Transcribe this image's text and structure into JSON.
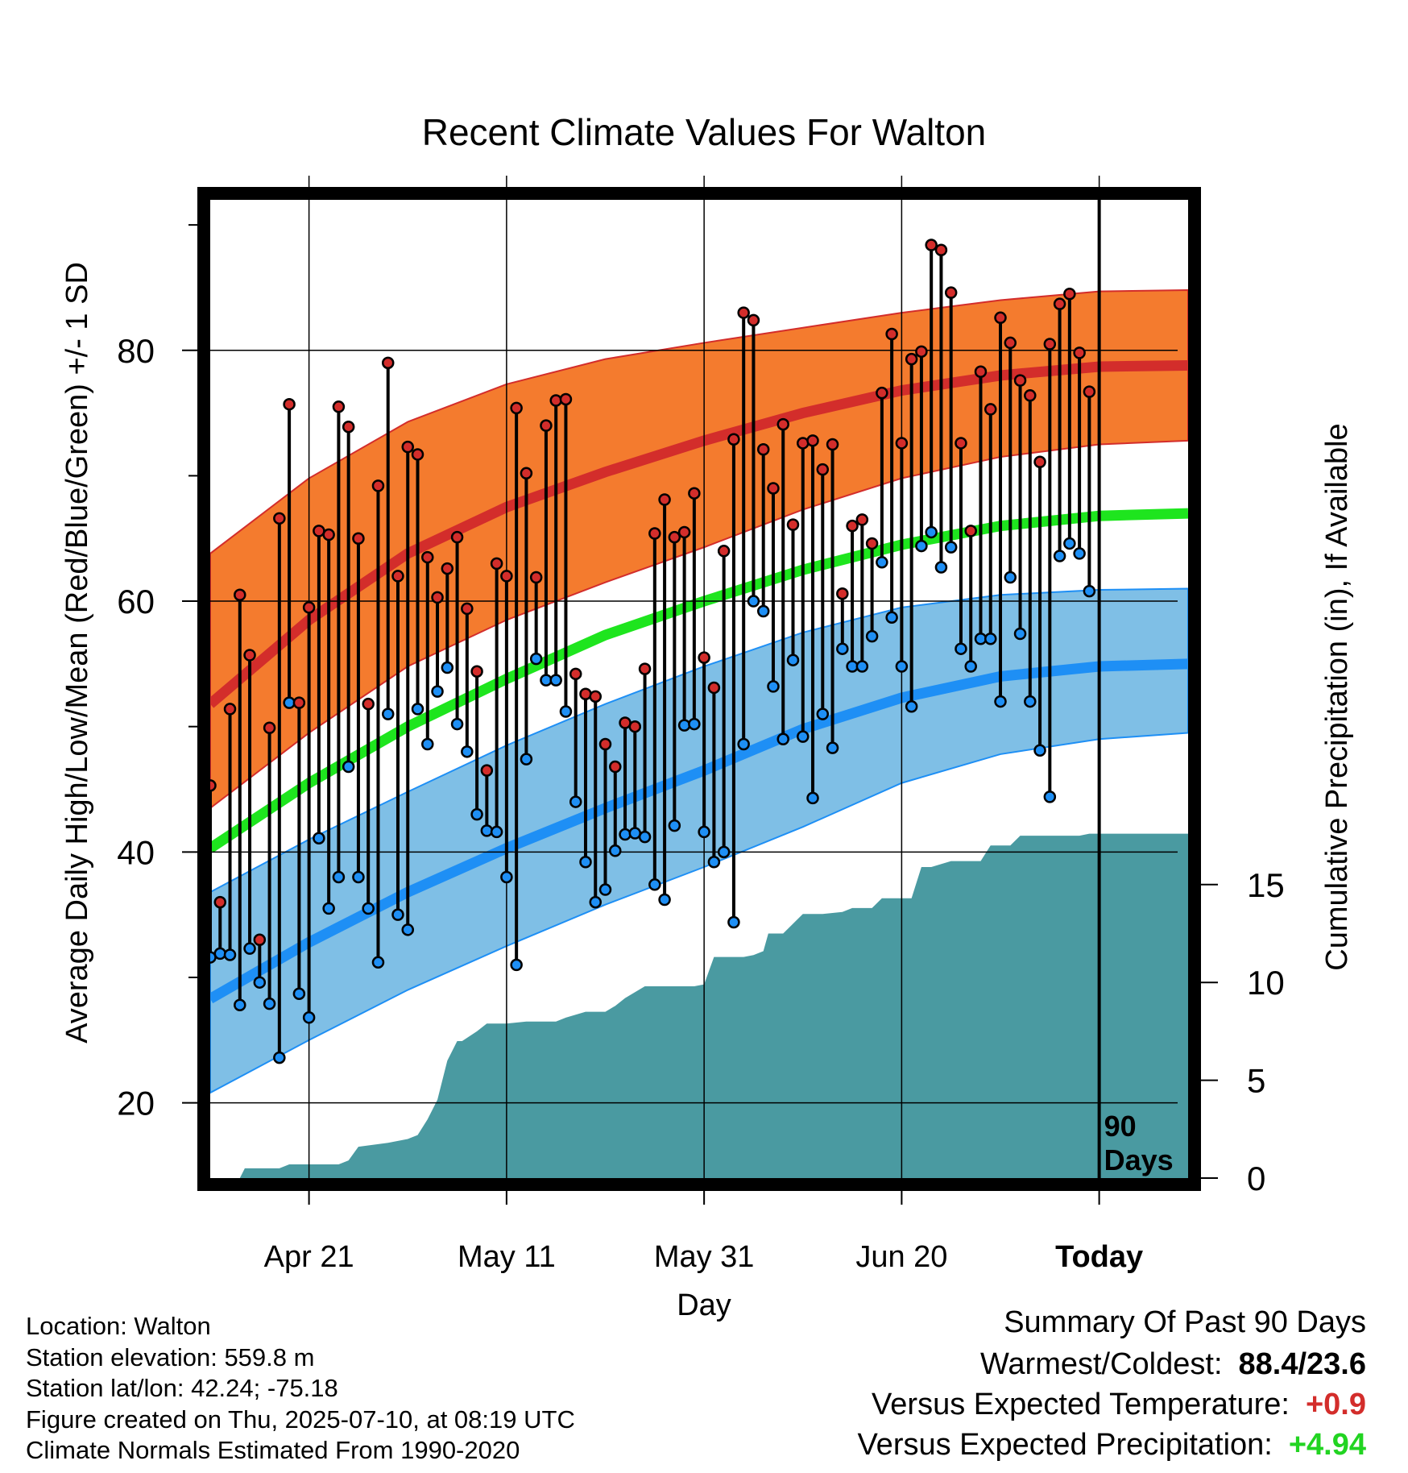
{
  "chart_data": {
    "type": "line",
    "title": "Recent Climate Values For Walton",
    "xlabel": "Day",
    "ylabel_left": "Average Daily High/Low/Mean (Red/Blue/Green) +/- 1 SD",
    "ylabel_right": "Cumulative Precipitation (in), If Available",
    "x_ticks": [
      {
        "label": "Apr 21",
        "day": 10
      },
      {
        "label": "May 11",
        "day": 30
      },
      {
        "label": "May 31",
        "day": 50
      },
      {
        "label": "Jun 20",
        "day": 70
      },
      {
        "label": "Today",
        "day": 90
      }
    ],
    "xlim": [
      0,
      99
    ],
    "y_left_ticks": [
      20,
      40,
      60,
      80
    ],
    "y_left_lim": [
      14,
      92
    ],
    "y_right_ticks": [
      0,
      5,
      10,
      15
    ],
    "y_right_lim": [
      0,
      50
    ],
    "grid": true,
    "today_marker_label": [
      "90",
      "Days"
    ],
    "normals": {
      "days": [
        0,
        10,
        20,
        30,
        40,
        50,
        60,
        70,
        80,
        90,
        99
      ],
      "high_mean": [
        51.8,
        58.5,
        63.8,
        67.5,
        70.3,
        72.8,
        75.0,
        76.8,
        78.0,
        78.7,
        78.8
      ],
      "high_upper": [
        63.8,
        69.8,
        74.3,
        77.3,
        79.3,
        80.6,
        81.8,
        83.0,
        84.0,
        84.7,
        84.8
      ],
      "high_lower": [
        43.5,
        49.5,
        54.8,
        58.5,
        61.5,
        64.3,
        67.3,
        69.8,
        71.5,
        72.5,
        72.8
      ],
      "mean": [
        40.3,
        45.5,
        50.0,
        53.8,
        57.3,
        60.0,
        62.5,
        64.5,
        66.0,
        66.8,
        67.0
      ],
      "low_mean": [
        28.3,
        32.8,
        36.8,
        40.3,
        43.5,
        46.5,
        49.8,
        52.3,
        54.0,
        54.8,
        55.0
      ],
      "low_upper": [
        36.8,
        41.0,
        44.8,
        48.5,
        51.8,
        54.8,
        57.5,
        59.5,
        60.5,
        60.9,
        61.0
      ],
      "low_lower": [
        20.8,
        25.0,
        29.0,
        32.5,
        35.8,
        38.8,
        42.0,
        45.5,
        47.8,
        49.0,
        49.5
      ]
    },
    "daily": {
      "days": [
        0,
        1,
        2,
        3,
        4,
        5,
        6,
        7,
        8,
        9,
        10,
        11,
        12,
        13,
        14,
        15,
        16,
        17,
        18,
        19,
        20,
        21,
        22,
        23,
        24,
        25,
        26,
        27,
        28,
        29,
        30,
        31,
        32,
        33,
        34,
        35,
        36,
        37,
        38,
        39,
        40,
        41,
        42,
        43,
        44,
        45,
        46,
        47,
        48,
        49,
        50,
        51,
        52,
        53,
        54,
        55,
        56,
        57,
        58,
        59,
        60,
        61,
        62,
        63,
        64,
        65,
        66,
        67,
        68,
        69,
        70,
        71,
        72,
        73,
        74,
        75,
        76,
        77,
        78,
        79,
        80,
        81,
        82,
        83,
        84,
        85,
        86,
        87,
        88,
        89
      ],
      "high": [
        45.3,
        36.0,
        51.4,
        60.5,
        55.7,
        33.0,
        49.9,
        66.6,
        75.7,
        51.9,
        59.5,
        65.6,
        65.3,
        75.5,
        73.9,
        65.0,
        51.8,
        69.2,
        79.0,
        62.0,
        72.3,
        71.7,
        63.5,
        60.3,
        62.6,
        65.1,
        59.4,
        54.4,
        46.5,
        63.0,
        62.0,
        75.4,
        70.2,
        61.9,
        74.0,
        76.0,
        76.1,
        54.2,
        52.6,
        52.4,
        48.6,
        46.8,
        50.3,
        50.0,
        54.6,
        65.4,
        68.1,
        65.1,
        65.5,
        68.6,
        55.5,
        53.1,
        64.0,
        72.9,
        83.0,
        82.4,
        72.1,
        69.0,
        74.1,
        66.1,
        72.6,
        72.8,
        70.5,
        72.5,
        60.6,
        66.0,
        66.5,
        64.6,
        76.6,
        81.3,
        72.6,
        79.3,
        79.9,
        88.4,
        88.0,
        84.6,
        72.6,
        65.6,
        78.3,
        75.3,
        82.6,
        80.6,
        77.6,
        76.4,
        71.1,
        80.5,
        83.7,
        84.5,
        79.8,
        76.7
      ],
      "low": [
        31.6,
        31.9,
        31.8,
        27.8,
        32.3,
        29.6,
        27.9,
        23.6,
        51.9,
        28.7,
        26.8,
        41.1,
        35.5,
        38.0,
        46.8,
        38.0,
        35.5,
        31.2,
        51.0,
        35.0,
        33.8,
        51.4,
        48.6,
        52.8,
        54.7,
        50.2,
        48.0,
        43.0,
        41.7,
        41.6,
        38.0,
        31.0,
        47.4,
        55.4,
        53.7,
        53.7,
        51.2,
        44.0,
        39.2,
        36.0,
        37.0,
        40.1,
        41.4,
        41.5,
        41.2,
        37.4,
        36.2,
        42.1,
        50.1,
        50.2,
        41.6,
        39.2,
        40.0,
        34.4,
        48.6,
        60.0,
        59.2,
        53.2,
        49.0,
        55.3,
        49.2,
        44.3,
        51.0,
        48.3,
        56.2,
        54.8,
        54.8,
        57.2,
        63.1,
        58.7,
        54.8,
        51.6,
        64.4,
        65.5,
        62.7,
        64.3,
        56.2,
        54.8,
        57.0,
        57.0,
        52.0,
        61.9,
        57.4,
        52.0,
        48.1,
        44.4,
        63.6,
        64.6,
        63.8,
        60.8
      ]
    },
    "precip_cumulative": {
      "days": [
        0,
        3,
        3.5,
        7,
        8,
        13,
        14,
        15,
        18,
        20,
        21,
        22,
        23,
        24,
        25,
        25.5,
        27,
        28,
        28.5,
        30,
        32,
        35,
        36,
        38,
        40,
        41,
        42,
        44,
        45,
        48,
        49,
        50,
        51,
        54,
        55,
        56,
        56.5,
        58,
        59,
        60,
        62,
        64,
        65,
        67,
        68,
        70,
        71,
        72,
        73,
        75,
        76,
        78,
        79,
        81,
        82,
        88,
        89,
        90,
        99
      ],
      "values": [
        0,
        0,
        0.5,
        0.5,
        0.7,
        0.7,
        0.9,
        1.6,
        1.8,
        2.0,
        2.2,
        3.0,
        4.0,
        6.0,
        7.0,
        7.0,
        7.5,
        7.9,
        7.9,
        7.9,
        8.0,
        8.0,
        8.2,
        8.5,
        8.5,
        8.8,
        9.2,
        9.8,
        9.8,
        9.8,
        9.8,
        9.9,
        11.3,
        11.3,
        11.4,
        11.6,
        12.5,
        12.5,
        13.0,
        13.5,
        13.5,
        13.6,
        13.8,
        13.8,
        14.3,
        14.3,
        14.3,
        15.9,
        15.9,
        16.2,
        16.2,
        16.2,
        17.0,
        17.0,
        17.5,
        17.5,
        17.6,
        17.6,
        17.6
      ]
    },
    "colors": {
      "high_band": "#f47b2e",
      "high_line": "#d32d2b",
      "low_band": "#7fbfe6",
      "low_line": "#1e8ff5",
      "mean_line": "#1ee51e",
      "precip_fill": "#4a9aa1",
      "high_dot": "#d32d2b",
      "low_dot": "#1e8ff5"
    }
  },
  "footer": {
    "location": "Location: Walton",
    "elevation": "Station elevation: 559.8 m",
    "latlon": "Station lat/lon: 42.24; -75.18",
    "created": "Figure created on Thu, 2025-07-10, at 08:19 UTC",
    "normals": "Climate Normals Estimated From 1990-2020"
  },
  "summary": {
    "title": "Summary Of Past 90 Days",
    "warm_cold_label": "Warmest/Coldest:",
    "warm_cold_value": "88.4/23.6",
    "temp_label": "Versus Expected Temperature:",
    "temp_value": "+0.9",
    "temp_color": "#d32d2b",
    "precip_label": "Versus Expected Precipitation:",
    "precip_value": "+4.94",
    "precip_color": "#22d422"
  }
}
